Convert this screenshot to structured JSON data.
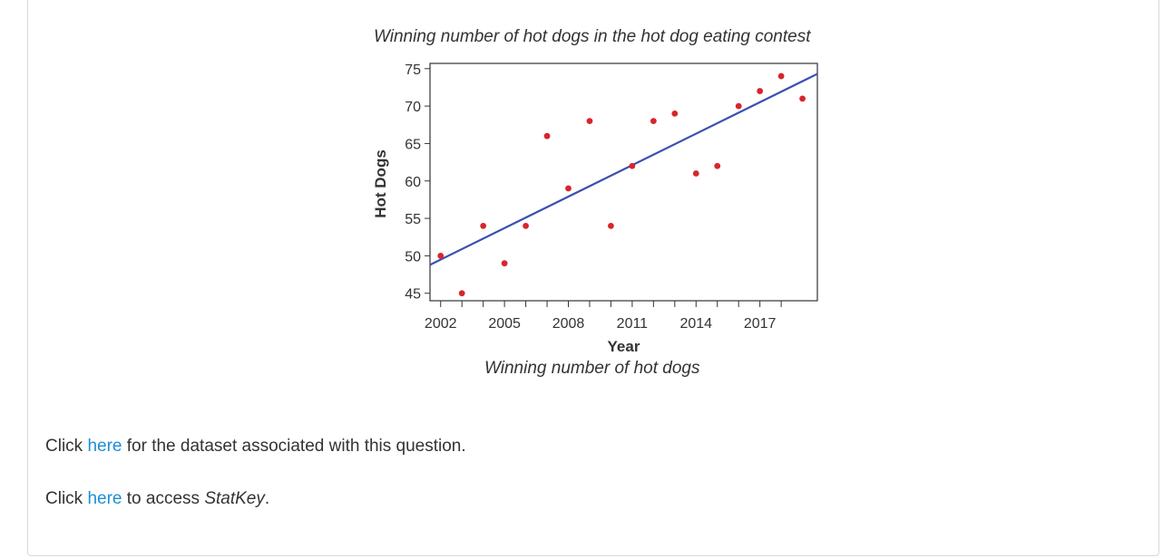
{
  "chart_data": {
    "type": "scatter",
    "title": "Winning number of hot dogs in the hot dog eating contest",
    "xlabel": "Year",
    "ylabel": "Hot Dogs",
    "xlim": [
      2001.5,
      2019.7
    ],
    "ylim": [
      44,
      75.7
    ],
    "x_ticks": [
      2002,
      2003,
      2004,
      2005,
      2006,
      2007,
      2008,
      2009,
      2010,
      2011,
      2012,
      2013,
      2014,
      2015,
      2016,
      2017,
      2018
    ],
    "x_tick_labels": [
      "2002",
      "2005",
      "2008",
      "2011",
      "2014",
      "2017"
    ],
    "x_tick_label_values": [
      2002,
      2005,
      2008,
      2011,
      2014,
      2017
    ],
    "y_ticks": [
      45,
      50,
      55,
      60,
      65,
      70,
      75
    ],
    "y_tick_labels": [
      "45",
      "50",
      "55",
      "60",
      "65",
      "70",
      "75"
    ],
    "points": [
      {
        "x": 2002,
        "y": 50
      },
      {
        "x": 2003,
        "y": 45
      },
      {
        "x": 2004,
        "y": 54
      },
      {
        "x": 2005,
        "y": 49
      },
      {
        "x": 2006,
        "y": 54
      },
      {
        "x": 2007,
        "y": 66
      },
      {
        "x": 2008,
        "y": 59
      },
      {
        "x": 2009,
        "y": 68
      },
      {
        "x": 2010,
        "y": 54
      },
      {
        "x": 2011,
        "y": 62
      },
      {
        "x": 2012,
        "y": 68
      },
      {
        "x": 2013,
        "y": 69
      },
      {
        "x": 2014,
        "y": 61
      },
      {
        "x": 2015,
        "y": 62
      },
      {
        "x": 2016,
        "y": 70
      },
      {
        "x": 2017,
        "y": 72
      },
      {
        "x": 2018,
        "y": 74
      },
      {
        "x": 2019,
        "y": 71
      }
    ],
    "regression_line": {
      "x": [
        2001.5,
        2019.7
      ],
      "y": [
        48.8,
        74.3
      ]
    },
    "point_color": "#d7262b",
    "line_color": "#3a4fb0",
    "grid": false
  },
  "caption": "Winning number of hot dogs",
  "paragraph1": {
    "prefix": "Click ",
    "link": "here",
    "suffix": " for the dataset associated with this question."
  },
  "paragraph2": {
    "prefix": "Click ",
    "link": "here",
    "middle": " to access ",
    "italic": "StatKey",
    "suffix": "."
  },
  "colors": {
    "link": "#1a8fd6",
    "text": "#333333",
    "border": "#d8d8d8"
  }
}
